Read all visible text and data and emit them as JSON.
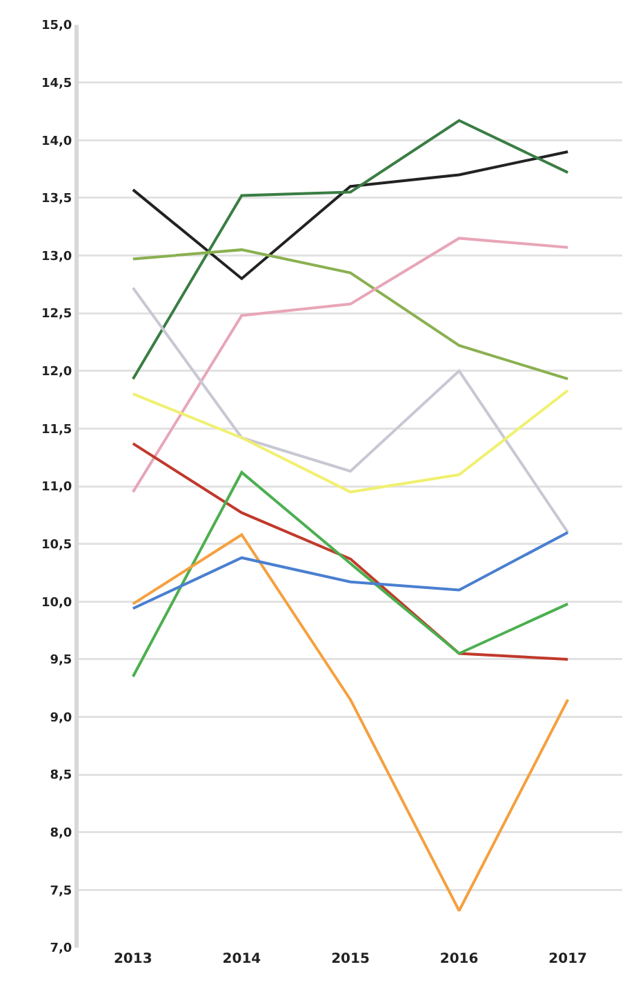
{
  "chart_data": {
    "type": "line",
    "categories": [
      "2013",
      "2014",
      "2015",
      "2016",
      "2017"
    ],
    "series": [
      {
        "color": "#222222",
        "values": [
          13.57,
          12.8,
          13.6,
          13.7,
          13.9
        ]
      },
      {
        "color": "#3a7d44",
        "values": [
          11.93,
          13.52,
          13.55,
          14.17,
          13.72
        ]
      },
      {
        "color": "#8ab050",
        "values": [
          12.97,
          13.05,
          12.85,
          12.22,
          11.93
        ]
      },
      {
        "color": "#e8a6b8",
        "values": [
          10.95,
          12.48,
          12.58,
          13.15,
          13.07
        ]
      },
      {
        "color": "#c8c8d4",
        "values": [
          12.72,
          11.42,
          11.13,
          12.0,
          10.6
        ]
      },
      {
        "color": "#f0f070",
        "values": [
          11.8,
          11.42,
          10.95,
          11.1,
          11.83
        ]
      },
      {
        "color": "#c0392b",
        "values": [
          11.37,
          10.77,
          10.37,
          9.55,
          9.5
        ]
      },
      {
        "color": "#4caf50",
        "values": [
          9.35,
          11.12,
          10.33,
          9.55,
          9.98
        ]
      },
      {
        "color": "#f5a040",
        "values": [
          9.98,
          10.58,
          9.15,
          7.32,
          9.15
        ]
      },
      {
        "color": "#4a7fd0",
        "values": [
          9.94,
          10.38,
          10.17,
          10.1,
          10.6
        ]
      }
    ],
    "ylim": [
      7,
      15
    ],
    "yticks": [
      {
        "value": 7,
        "label": "7,0"
      },
      {
        "value": 7.5,
        "label": "7,5"
      },
      {
        "value": 8,
        "label": "8,0"
      },
      {
        "value": 8.5,
        "label": "8,5"
      },
      {
        "value": 9,
        "label": "9,0"
      },
      {
        "value": 9.5,
        "label": "9,5"
      },
      {
        "value": 10,
        "label": "10,0"
      },
      {
        "value": 10.5,
        "label": "10,5"
      },
      {
        "value": 11,
        "label": "11,0"
      },
      {
        "value": 11.5,
        "label": "11,5"
      },
      {
        "value": 12,
        "label": "12,0"
      },
      {
        "value": 12.5,
        "label": "12,5"
      },
      {
        "value": 13,
        "label": "13,0"
      },
      {
        "value": 13.5,
        "label": "13,5"
      },
      {
        "value": 14,
        "label": "14,0"
      },
      {
        "value": 14.5,
        "label": "14,5"
      },
      {
        "value": 15,
        "label": "15,0"
      }
    ],
    "grid": "y",
    "marker": "none",
    "line_style": "solid"
  }
}
